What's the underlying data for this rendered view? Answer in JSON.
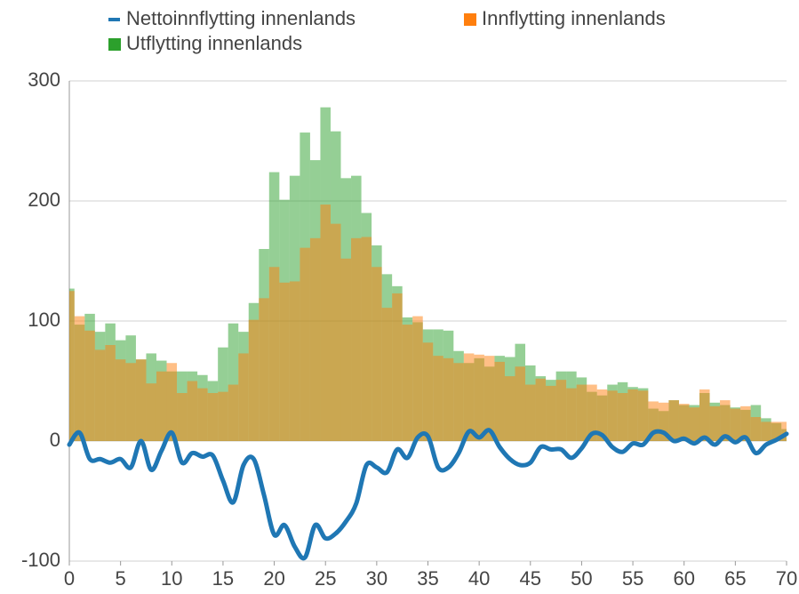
{
  "chart_data": {
    "type": "combo",
    "x": [
      0,
      1,
      2,
      3,
      4,
      5,
      6,
      7,
      8,
      9,
      10,
      11,
      12,
      13,
      14,
      15,
      16,
      17,
      18,
      19,
      20,
      21,
      22,
      23,
      24,
      25,
      26,
      27,
      28,
      29,
      30,
      31,
      32,
      33,
      34,
      35,
      36,
      37,
      38,
      39,
      40,
      41,
      42,
      43,
      44,
      45,
      46,
      47,
      48,
      49,
      50,
      51,
      52,
      53,
      54,
      55,
      56,
      57,
      58,
      59,
      60,
      61,
      62,
      63,
      64,
      65,
      66,
      67,
      68,
      69,
      70
    ],
    "series": [
      {
        "name": "Nettoinnflytting innenlands",
        "type": "line",
        "color": "#1f77b4",
        "values": [
          -3,
          7,
          -15,
          -15,
          -18,
          -15,
          -22,
          0,
          -24,
          -8,
          7,
          -18,
          -10,
          -13,
          -12,
          -33,
          -51,
          -20,
          -15,
          -45,
          -78,
          -70,
          -88,
          -97,
          -70,
          -81,
          -77,
          -67,
          -52,
          -20,
          -22,
          -26,
          -7,
          -14,
          3,
          4,
          -22,
          -22,
          -10,
          8,
          3,
          9,
          -5,
          -15,
          -20,
          -18,
          -5,
          -7,
          -7,
          -14,
          -6,
          6,
          5,
          -5,
          -9,
          -2,
          -3,
          7,
          7,
          0,
          2,
          -2,
          3,
          -3,
          4,
          -1,
          3,
          -10,
          -3,
          1,
          6
        ]
      },
      {
        "name": "Innflytting innenlands",
        "type": "bar",
        "color": "#ff7f0e",
        "values": [
          125,
          104,
          92,
          76,
          80,
          68,
          65,
          68,
          48,
          58,
          65,
          40,
          50,
          44,
          40,
          41,
          47,
          73,
          101,
          119,
          145,
          132,
          133,
          161,
          169,
          197,
          181,
          152,
          169,
          170,
          145,
          111,
          123,
          97,
          104,
          82,
          71,
          69,
          65,
          73,
          72,
          71,
          66,
          54,
          62,
          47,
          52,
          46,
          51,
          44,
          47,
          47,
          43,
          42,
          40,
          43,
          42,
          33,
          32,
          34,
          31,
          28,
          43,
          29,
          34,
          27,
          29,
          20,
          16,
          16,
          16
        ]
      },
      {
        "name": "Utflytting innenlands",
        "type": "bar",
        "color": "#2ca02c",
        "values": [
          127,
          97,
          106,
          91,
          98,
          84,
          88,
          68,
          73,
          67,
          58,
          58,
          58,
          55,
          50,
          78,
          98,
          91,
          115,
          160,
          224,
          201,
          221,
          257,
          234,
          278,
          258,
          219,
          221,
          190,
          163,
          139,
          129,
          103,
          99,
          93,
          93,
          92,
          75,
          65,
          69,
          62,
          71,
          70,
          81,
          63,
          54,
          51,
          58,
          58,
          53,
          41,
          38,
          47,
          49,
          45,
          44,
          27,
          25,
          34,
          30,
          30,
          40,
          32,
          30,
          28,
          26,
          30,
          19,
          15,
          10
        ]
      }
    ],
    "xlim": [
      0,
      70
    ],
    "xticks": [
      0,
      5,
      10,
      15,
      20,
      25,
      30,
      35,
      40,
      45,
      50,
      55,
      60,
      65,
      70
    ],
    "ylim": [
      -100,
      300
    ],
    "yticks": [
      -100,
      0,
      100,
      200,
      300
    ],
    "grid": true
  }
}
